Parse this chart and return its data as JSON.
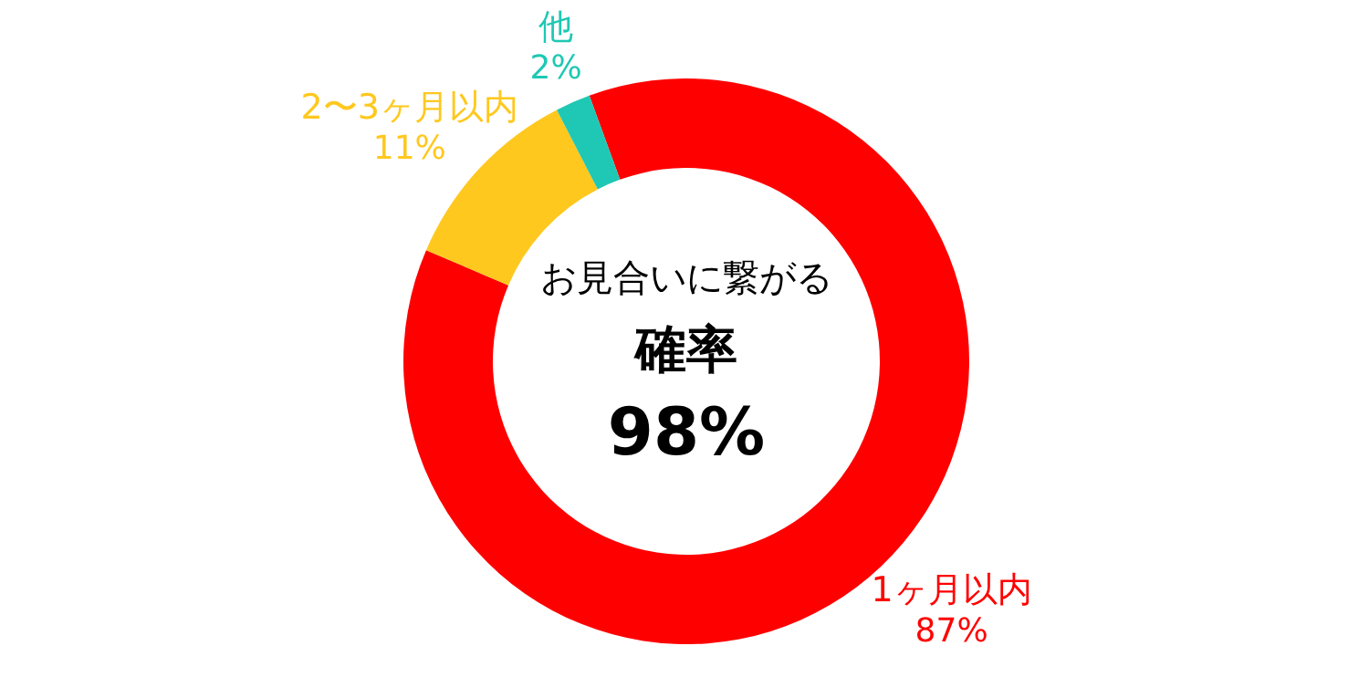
{
  "chart_data": {
    "type": "donut",
    "categories": [
      "1ヶ月以内",
      "2〜3ヶ月以内",
      "他"
    ],
    "values": [
      87,
      11,
      2
    ],
    "colors": [
      "#ff0000",
      "#ffc81e",
      "#1ec8b4"
    ],
    "value_labels": [
      "87%",
      "11%",
      "2%"
    ],
    "annotations": [
      "お見合いに繋がる",
      "確率",
      "98%"
    ]
  }
}
